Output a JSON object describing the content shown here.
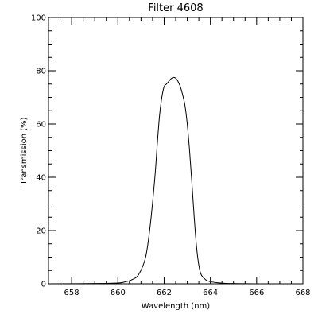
{
  "chart_data": {
    "type": "line",
    "title": "Filter 4608",
    "xlabel": "Wavelength (nm)",
    "ylabel": "Transmission (%)",
    "xlim": [
      657,
      668
    ],
    "ylim": [
      0,
      100
    ],
    "x_major_ticks": [
      658,
      660,
      662,
      664,
      666,
      668
    ],
    "x_tick_labels": [
      "658",
      "660",
      "662",
      "664",
      "666",
      "668"
    ],
    "y_major_ticks": [
      0,
      20,
      40,
      60,
      80,
      100
    ],
    "y_tick_labels": [
      "0",
      "20",
      "40",
      "60",
      "80",
      "100"
    ],
    "grid": false,
    "legend": "none",
    "series": [
      {
        "color": "#000000",
        "x": [
          657.0,
          659.0,
          660.0,
          660.3,
          660.6,
          660.9,
          661.2,
          661.4,
          661.6,
          661.7,
          661.8,
          661.9,
          662.0,
          662.1,
          662.2,
          662.3,
          662.4,
          662.5,
          662.6,
          662.7,
          662.8,
          662.9,
          663.0,
          663.1,
          663.2,
          663.3,
          663.4,
          663.5,
          663.6,
          663.8,
          664.0,
          664.3,
          664.6,
          665.0,
          666.0,
          668.0
        ],
        "y": [
          0.0,
          0.1,
          0.3,
          0.7,
          1.5,
          3.5,
          10.0,
          22.0,
          40.0,
          52.0,
          63.0,
          70.0,
          74.0,
          75.0,
          76.0,
          77.0,
          77.5,
          77.2,
          76.0,
          74.0,
          71.0,
          67.0,
          60.0,
          50.0,
          38.0,
          25.0,
          14.0,
          7.0,
          3.5,
          1.5,
          0.8,
          0.4,
          0.2,
          0.1,
          0.0,
          0.0
        ]
      }
    ]
  }
}
